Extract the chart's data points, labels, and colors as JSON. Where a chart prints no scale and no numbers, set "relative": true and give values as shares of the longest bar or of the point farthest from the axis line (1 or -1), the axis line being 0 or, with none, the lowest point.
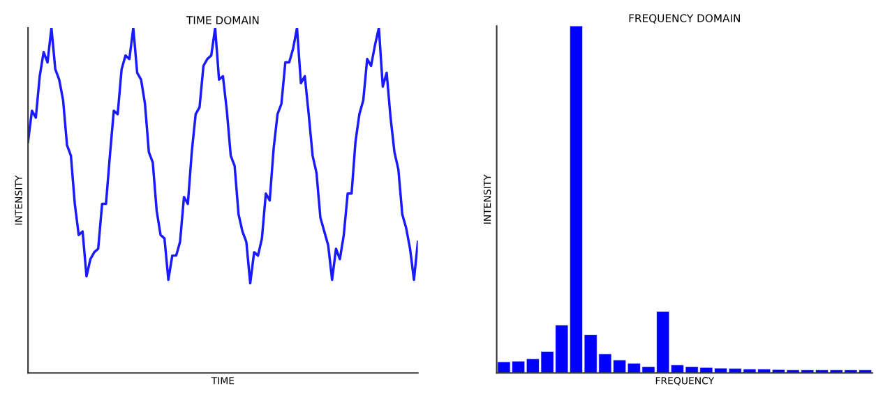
{
  "chart_data": [
    {
      "type": "line",
      "title": "TIME DOMAIN",
      "xlabel": "TIME",
      "ylabel": "INTENSITY",
      "relative": true,
      "tick_labels": false,
      "grid": false,
      "marker": "none",
      "line_style": "solid",
      "categories": [
        null,
        null,
        null,
        null,
        null,
        null,
        null,
        null,
        null,
        null,
        null,
        null,
        null,
        null,
        null,
        null,
        null,
        null,
        null,
        null,
        null,
        null,
        null,
        null,
        null,
        null,
        null,
        null,
        null,
        null,
        null,
        null,
        null,
        null,
        null,
        null,
        null,
        null,
        null,
        null,
        null,
        null,
        null,
        null,
        null,
        null,
        null,
        null,
        null,
        null,
        null,
        null,
        null,
        null,
        null,
        null,
        null,
        null,
        null,
        null,
        null,
        null,
        null,
        null,
        null,
        null,
        null,
        null,
        null,
        null,
        null,
        null,
        null,
        null,
        null,
        null,
        null,
        null,
        null,
        null,
        null,
        null,
        null,
        null,
        null,
        null,
        null,
        null,
        null,
        null,
        null,
        null,
        null,
        null,
        null,
        null,
        null,
        null,
        null,
        null,
        null
      ],
      "series": [
        {
          "color": "#1a1aff",
          "values": [
            0.67,
            0.76,
            0.74,
            0.86,
            0.93,
            0.9,
            1.0,
            0.88,
            0.85,
            0.79,
            0.66,
            0.63,
            0.49,
            0.4,
            0.41,
            0.28,
            0.33,
            0.35,
            0.36,
            0.49,
            0.49,
            0.63,
            0.76,
            0.75,
            0.88,
            0.92,
            0.91,
            1.0,
            0.87,
            0.85,
            0.78,
            0.64,
            0.61,
            0.47,
            0.4,
            0.39,
            0.27,
            0.34,
            0.34,
            0.38,
            0.51,
            0.49,
            0.64,
            0.75,
            0.77,
            0.89,
            0.91,
            0.92,
            1.0,
            0.85,
            0.86,
            0.76,
            0.63,
            0.6,
            0.46,
            0.41,
            0.38,
            0.26,
            0.35,
            0.34,
            0.39,
            0.52,
            0.5,
            0.65,
            0.75,
            0.78,
            0.9,
            0.9,
            0.94,
            1.0,
            0.84,
            0.86,
            0.75,
            0.63,
            0.58,
            0.45,
            0.41,
            0.37,
            0.27,
            0.36,
            0.33,
            0.4,
            0.52,
            0.52,
            0.67,
            0.75,
            0.79,
            0.91,
            0.89,
            0.95,
            1.0,
            0.83,
            0.87,
            0.74,
            0.64,
            0.59,
            0.46,
            0.42,
            0.36,
            0.27,
            0.38
          ]
        }
      ]
    },
    {
      "type": "bar",
      "title": "FREQUENCY DOMAIN",
      "xlabel": "FREQUENCY",
      "ylabel": "INTENSITY",
      "relative": true,
      "tick_labels": false,
      "grid": false,
      "categories": [
        null,
        null,
        null,
        null,
        null,
        null,
        null,
        null,
        null,
        null,
        null,
        null,
        null,
        null,
        null,
        null,
        null,
        null,
        null,
        null,
        null,
        null,
        null,
        null,
        null,
        null
      ],
      "series": [
        {
          "color": "#0000ff",
          "values": [
            0.032,
            0.034,
            0.041,
            0.062,
            0.138,
            1,
            0.11,
            0.055,
            0.037,
            0.028,
            0.018,
            0.177,
            0.023,
            0.018,
            0.016,
            0.014,
            0.013,
            0.011,
            0.011,
            0.01,
            0.009,
            0.009,
            0.009,
            0.009,
            0.009,
            0.009
          ]
        }
      ]
    }
  ]
}
